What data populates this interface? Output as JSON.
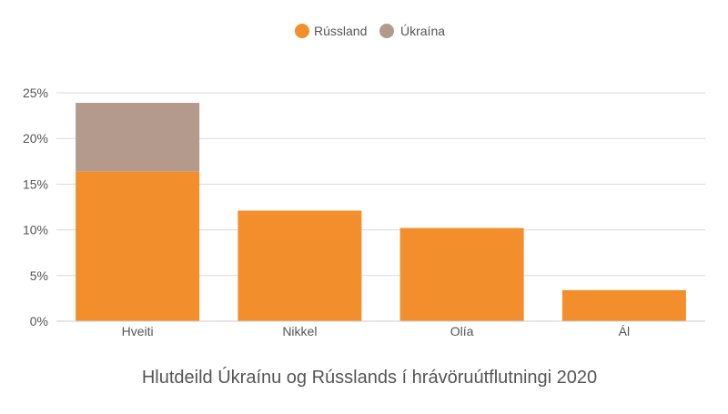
{
  "chart_data": {
    "type": "bar",
    "stacked": true,
    "title": "Hlutdeild Úkraínu og Rússlands í hrávöruútflutningi 2020",
    "xlabel": "",
    "ylabel": "",
    "categories": [
      "Hveiti",
      "Nikkel",
      "Olía",
      "Ál"
    ],
    "series": [
      {
        "name": "Rússland",
        "color": "#f28e2b",
        "values": [
          16.4,
          12.1,
          10.2,
          3.4
        ]
      },
      {
        "name": "Úkraína",
        "color": "#b39a8d",
        "values": [
          7.5,
          0,
          0,
          0
        ]
      }
    ],
    "ylim": [
      0,
      25
    ],
    "yticks": [
      0,
      5,
      10,
      15,
      20,
      25
    ],
    "ytick_labels": [
      "0%",
      "5%",
      "10%",
      "15%",
      "20%",
      "25%"
    ],
    "grid": true,
    "legend_position": "top-center"
  }
}
